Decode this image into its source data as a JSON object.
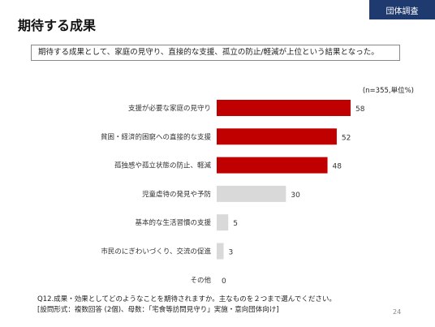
{
  "tag": "団体調査",
  "title": "期待する成果",
  "summary": "期待する成果として、家庭の見守り、直接的な支援、孤立の防止/軽減が上位という結果となった。",
  "chart_data": {
    "type": "bar",
    "orientation": "horizontal",
    "note": "(n=355,単位%)",
    "categories": [
      "支援が必要な家庭の見守り",
      "貧困・経済的困窮への直接的な支援",
      "孤独感や孤立状態の防止、軽減",
      "児童虐待の発見や予防",
      "基本的な生活習慣の支援",
      "市民のにぎわいづくり、交流の促進",
      "その他"
    ],
    "values": [
      58,
      52,
      48,
      30,
      5,
      3,
      0
    ],
    "xlim": [
      0,
      58
    ],
    "colors": {
      "highlight": "#c00000",
      "other": "#d9d9d9"
    },
    "highlight_count": 3
  },
  "question": "Q12.成果・効果としてどのようなことを期待されますか。主なものを２つまで選んでください。",
  "question_format": "[設問形式：複数回答 (2個)、母数：「宅食等訪問見守り」実施・意向団体向け]",
  "page_number": "24"
}
